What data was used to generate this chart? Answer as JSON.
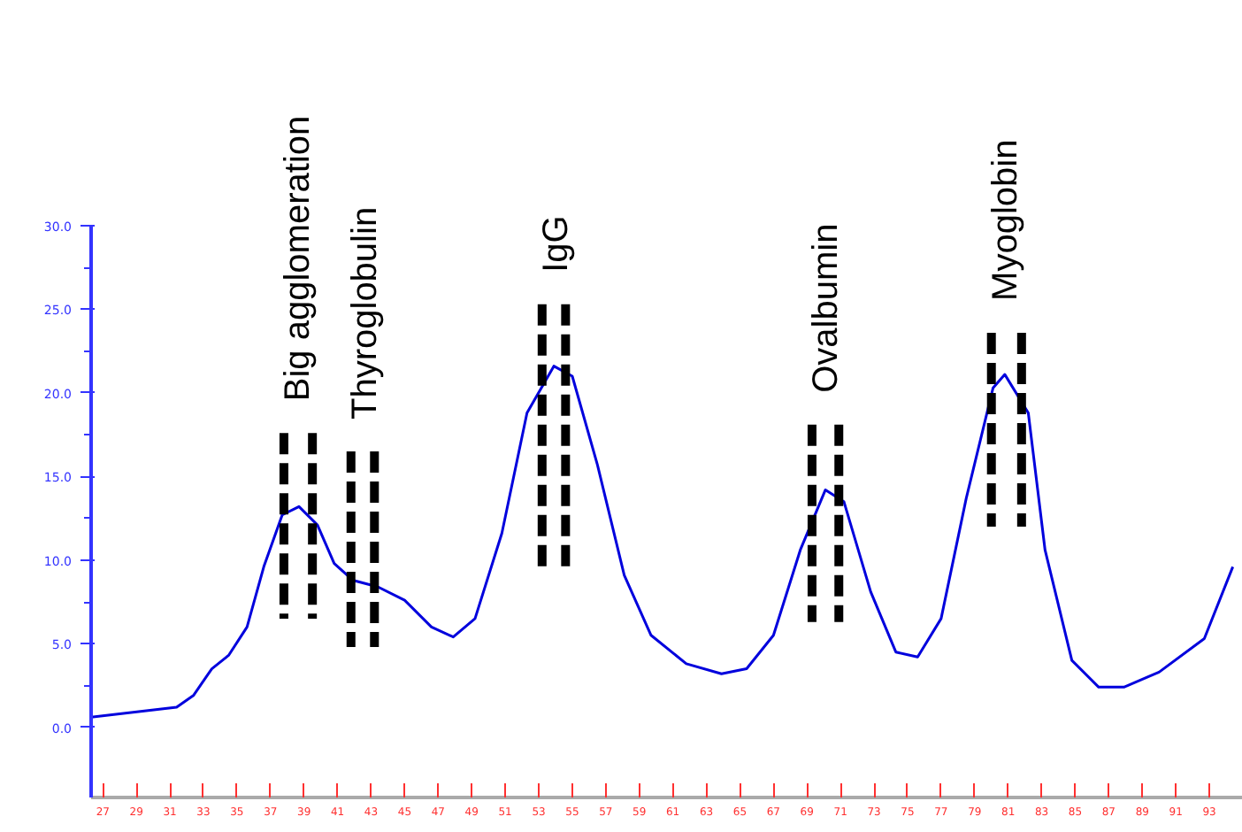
{
  "chart_data": {
    "type": "line",
    "grid": false,
    "marker": "none",
    "line_style": "solid",
    "xlim": [
      26.3,
      95
    ],
    "ylim": [
      -4.2,
      30
    ],
    "xticks": [
      27,
      29,
      31,
      33,
      35,
      37,
      39,
      41,
      43,
      45,
      47,
      49,
      51,
      53,
      55,
      57,
      59,
      61,
      63,
      65,
      67,
      69,
      71,
      73,
      75,
      77,
      79,
      81,
      83,
      85,
      87,
      89,
      91,
      93
    ],
    "yticks": [
      {
        "value": 0,
        "label": "0.0"
      },
      {
        "value": 5,
        "label": "5.0"
      },
      {
        "value": 10,
        "label": "10.0"
      },
      {
        "value": 15,
        "label": "15.0"
      },
      {
        "value": 20,
        "label": "20.0"
      },
      {
        "value": 25,
        "label": "25.0"
      },
      {
        "value": 30,
        "label": "30.0"
      }
    ],
    "series": [
      {
        "color": "#0000dd",
        "x": [
          26.3,
          31.4,
          32.4,
          33.5,
          34.5,
          35.6,
          36.6,
          37.7,
          38.7,
          39.8,
          40.8,
          41.9,
          43.4,
          45.0,
          46.6,
          47.9,
          49.2,
          50.8,
          52.3,
          53.9,
          55.0,
          56.5,
          58.1,
          59.7,
          61.8,
          63.9,
          65.4,
          67.0,
          68.6,
          70.1,
          71.2,
          72.8,
          74.3,
          75.6,
          77.0,
          78.5,
          80.1,
          80.8,
          82.2,
          83.2,
          84.8,
          86.4,
          87.9,
          90.0,
          92.7,
          94.4
        ],
        "values": [
          0.6,
          1.2,
          1.9,
          3.5,
          4.3,
          6.0,
          9.6,
          12.7,
          13.2,
          12.1,
          9.8,
          8.8,
          8.4,
          7.6,
          6.0,
          5.4,
          6.5,
          11.6,
          18.8,
          21.6,
          21.0,
          15.7,
          9.1,
          5.5,
          3.8,
          3.2,
          3.5,
          5.5,
          10.6,
          14.2,
          13.5,
          8.1,
          4.5,
          4.2,
          6.5,
          13.7,
          20.3,
          21.1,
          18.8,
          10.6,
          4.0,
          2.4,
          2.4,
          3.3,
          5.3,
          9.6
        ]
      },
      {
        "name": "Big agglomeration",
        "color": "#000000",
        "line_style": "dashed",
        "x": [
          37.8,
          37.8
        ],
        "values": [
          17.6,
          6.5
        ]
      },
      {
        "color": "#000000",
        "line_style": "dashed",
        "x": [
          39.5,
          39.5
        ],
        "values": [
          17.6,
          6.5
        ]
      },
      {
        "name": "Thyroglobulin",
        "color": "#000000",
        "line_style": "dashed",
        "x": [
          41.8,
          41.8
        ],
        "values": [
          16.5,
          4.8
        ]
      },
      {
        "color": "#000000",
        "line_style": "dashed",
        "x": [
          43.2,
          43.2
        ],
        "values": [
          16.5,
          4.8
        ]
      },
      {
        "name": "IgG",
        "color": "#000000",
        "line_style": "dashed",
        "x": [
          53.2,
          53.2
        ],
        "values": [
          25.3,
          9.4
        ]
      },
      {
        "color": "#000000",
        "line_style": "dashed",
        "x": [
          54.6,
          54.6
        ],
        "values": [
          25.3,
          9.4
        ]
      },
      {
        "name": "Ovalbumin",
        "color": "#000000",
        "line_style": "dashed",
        "x": [
          69.3,
          69.3
        ],
        "values": [
          18.1,
          6.3
        ]
      },
      {
        "color": "#000000",
        "line_style": "dashed",
        "x": [
          70.9,
          70.9
        ],
        "values": [
          18.1,
          6.3
        ]
      },
      {
        "name": "Myoglobin",
        "color": "#000000",
        "line_style": "dashed",
        "x": [
          80.0,
          80.0
        ],
        "values": [
          23.6,
          12.0
        ]
      },
      {
        "color": "#000000",
        "line_style": "dashed",
        "x": [
          81.8,
          81.8
        ],
        "values": [
          23.6,
          12.0
        ]
      }
    ]
  }
}
